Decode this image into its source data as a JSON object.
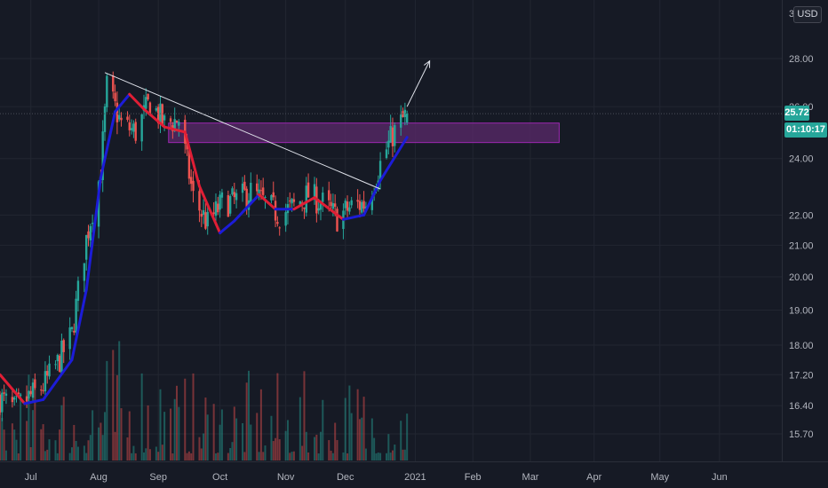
{
  "currency": "USD",
  "last_price_label": "25.72",
  "countdown_label": "01:10:17",
  "colors": {
    "background": "#161a25",
    "grid": "#222631",
    "up": "#26a69a",
    "down": "#ef5350",
    "ma_up": "#1c1cd8",
    "ma_down": "#e01e35",
    "zone_fill": "#5b2a6b",
    "zone_border": "#9c27b0",
    "trendline": "#e0e3eb",
    "axis_text": "#b2b5be",
    "badge": "#26a69a"
  },
  "chart_data": {
    "type": "candlestick",
    "title": "",
    "xlabel": "",
    "ylabel": "",
    "y_axis": {
      "scale": "log",
      "ticks": [
        "15.70",
        "16.40",
        "17.20",
        "18.00",
        "19.00",
        "20.00",
        "21.00",
        "22.00",
        "24.00",
        "26.00",
        "28.00"
      ],
      "range": [
        15.1,
        31.0
      ]
    },
    "x_axis": {
      "ticks": [
        "Jul",
        "Aug",
        "Sep",
        "Oct",
        "Nov",
        "Dec",
        "2021",
        "Feb",
        "Mar",
        "Apr",
        "May",
        "Jun"
      ],
      "date_range": [
        "2020-06-16",
        "2021-06-30"
      ]
    },
    "grid": true,
    "candles_close": [
      {
        "date": "2020-06-16",
        "close": 16.6
      },
      {
        "date": "2020-06-23",
        "close": 16.3
      },
      {
        "date": "2020-06-30",
        "close": 16.6
      },
      {
        "date": "2020-07-07",
        "close": 16.9
      },
      {
        "date": "2020-07-14",
        "close": 17.5
      },
      {
        "date": "2020-07-21",
        "close": 18.3
      },
      {
        "date": "2020-07-28",
        "close": 21.2
      },
      {
        "date": "2020-08-04",
        "close": 23.5
      },
      {
        "date": "2020-08-07",
        "close": 26.8
      },
      {
        "date": "2020-08-14",
        "close": 25.3
      },
      {
        "date": "2020-08-21",
        "close": 25.0
      },
      {
        "date": "2020-08-28",
        "close": 26.2
      },
      {
        "date": "2020-09-04",
        "close": 25.3
      },
      {
        "date": "2020-09-11",
        "close": 25.5
      },
      {
        "date": "2020-09-18",
        "close": 22.6
      },
      {
        "date": "2020-09-25",
        "close": 21.7
      },
      {
        "date": "2020-10-02",
        "close": 22.4
      },
      {
        "date": "2020-10-09",
        "close": 22.5
      },
      {
        "date": "2020-10-16",
        "close": 22.8
      },
      {
        "date": "2020-10-23",
        "close": 22.4
      },
      {
        "date": "2020-10-30",
        "close": 22.0
      },
      {
        "date": "2020-11-06",
        "close": 22.3
      },
      {
        "date": "2020-11-13",
        "close": 22.7
      },
      {
        "date": "2020-11-20",
        "close": 22.4
      },
      {
        "date": "2020-11-27",
        "close": 21.9
      },
      {
        "date": "2020-12-04",
        "close": 22.3
      },
      {
        "date": "2020-12-11",
        "close": 22.4
      },
      {
        "date": "2020-12-18",
        "close": 23.8
      },
      {
        "date": "2020-12-24",
        "close": 24.9
      },
      {
        "date": "2020-12-31",
        "close": 25.72
      }
    ],
    "moving_average": [
      {
        "date": "2020-06-16",
        "value": 17.2,
        "trend": "down"
      },
      {
        "date": "2020-06-28",
        "value": 16.45,
        "trend": "down"
      },
      {
        "date": "2020-07-07",
        "value": 16.55,
        "trend": "up"
      },
      {
        "date": "2020-07-21",
        "value": 17.6,
        "trend": "up"
      },
      {
        "date": "2020-07-28",
        "value": 19.6,
        "trend": "up"
      },
      {
        "date": "2020-08-04",
        "value": 23.3,
        "trend": "up"
      },
      {
        "date": "2020-08-11",
        "value": 25.8,
        "trend": "up"
      },
      {
        "date": "2020-08-18",
        "value": 26.5,
        "trend": "up"
      },
      {
        "date": "2020-08-25",
        "value": 25.9,
        "trend": "down"
      },
      {
        "date": "2020-09-04",
        "value": 25.2,
        "trend": "down"
      },
      {
        "date": "2020-09-14",
        "value": 25.0,
        "trend": "down"
      },
      {
        "date": "2020-09-21",
        "value": 23.0,
        "trend": "down"
      },
      {
        "date": "2020-10-01",
        "value": 21.4,
        "trend": "down"
      },
      {
        "date": "2020-10-08",
        "value": 21.8,
        "trend": "up"
      },
      {
        "date": "2020-10-20",
        "value": 22.7,
        "trend": "up"
      },
      {
        "date": "2020-10-28",
        "value": 22.2,
        "trend": "down"
      },
      {
        "date": "2020-11-06",
        "value": 22.2,
        "trend": "up"
      },
      {
        "date": "2020-11-16",
        "value": 22.6,
        "trend": "down"
      },
      {
        "date": "2020-11-30",
        "value": 21.85,
        "trend": "down"
      },
      {
        "date": "2020-12-10",
        "value": 22.0,
        "trend": "up"
      },
      {
        "date": "2020-12-18",
        "value": 23.2,
        "trend": "up"
      },
      {
        "date": "2020-12-31",
        "value": 24.8,
        "trend": "up"
      }
    ],
    "annotations": {
      "resistance_zone": {
        "date_start": "2020-09-06",
        "date_end": "2021-03-15",
        "price_low": 24.6,
        "price_high": 25.35
      },
      "trendline": {
        "start": {
          "date": "2020-08-06",
          "price": 27.4
        },
        "end": {
          "date": "2020-12-18",
          "price": 22.9
        }
      },
      "arrow": {
        "start": {
          "date": "2020-12-31",
          "price": 26.0
        },
        "end": {
          "date": "2021-01-11",
          "price": 27.9
        }
      }
    },
    "last_price": 25.72
  }
}
